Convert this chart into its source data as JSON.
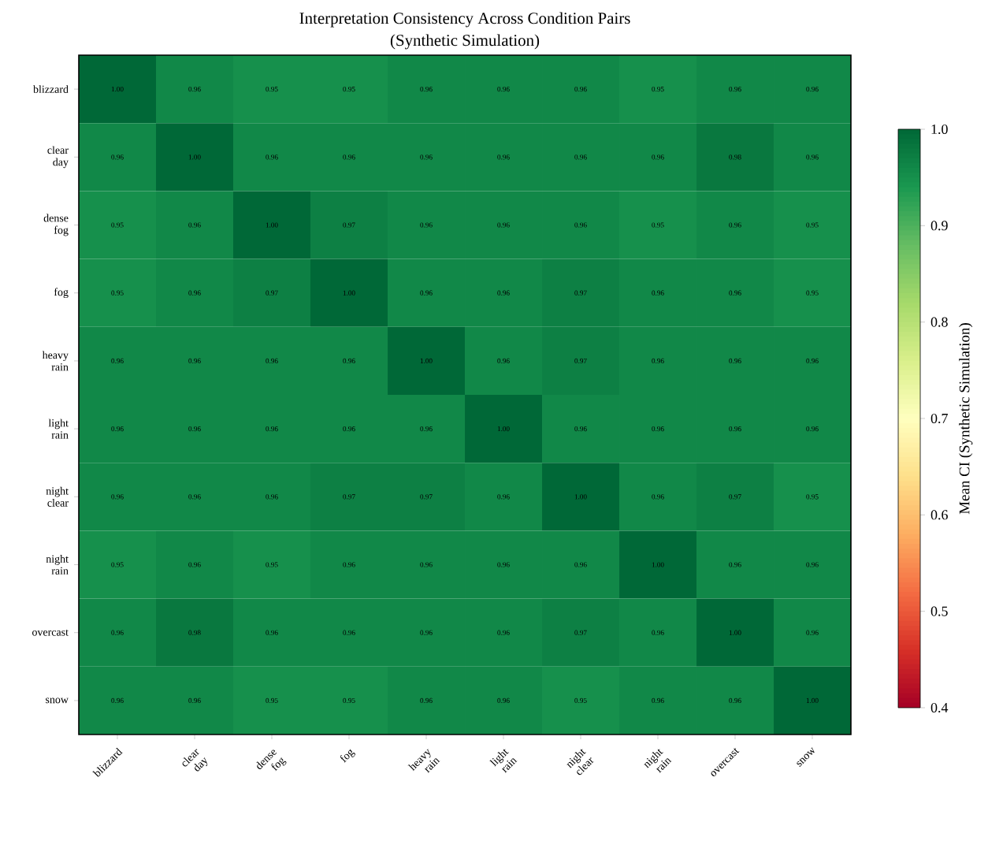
{
  "chart_data": {
    "type": "heatmap",
    "title": "Interpretation Consistency Across Condition Pairs",
    "subtitle": "(Synthetic Simulation)",
    "categories": [
      "blizzard",
      "clear day",
      "dense fog",
      "fog",
      "heavy rain",
      "light rain",
      "night clear",
      "night rain",
      "overcast",
      "snow"
    ],
    "y_categories": [
      "blizzard",
      "clear day",
      "dense fog",
      "fog",
      "heavy rain",
      "light rain",
      "night clear",
      "night rain",
      "overcast",
      "snow"
    ],
    "cells": [
      [
        1.0,
        0.96,
        0.95,
        0.95,
        0.96,
        0.96,
        0.96,
        0.95,
        0.96,
        0.96
      ],
      [
        0.96,
        1.0,
        0.96,
        0.96,
        0.96,
        0.96,
        0.96,
        0.96,
        0.98,
        0.96
      ],
      [
        0.95,
        0.96,
        1.0,
        0.97,
        0.96,
        0.96,
        0.96,
        0.95,
        0.96,
        0.95
      ],
      [
        0.95,
        0.96,
        0.97,
        1.0,
        0.96,
        0.96,
        0.97,
        0.96,
        0.96,
        0.95
      ],
      [
        0.96,
        0.96,
        0.96,
        0.96,
        1.0,
        0.96,
        0.97,
        0.96,
        0.96,
        0.96
      ],
      [
        0.96,
        0.96,
        0.96,
        0.96,
        0.96,
        1.0,
        0.96,
        0.96,
        0.96,
        0.96
      ],
      [
        0.96,
        0.96,
        0.96,
        0.97,
        0.97,
        0.96,
        1.0,
        0.96,
        0.97,
        0.95
      ],
      [
        0.95,
        0.96,
        0.95,
        0.96,
        0.96,
        0.96,
        0.96,
        1.0,
        0.96,
        0.96
      ],
      [
        0.96,
        0.98,
        0.96,
        0.96,
        0.96,
        0.96,
        0.97,
        0.96,
        1.0,
        0.96
      ],
      [
        0.96,
        0.96,
        0.95,
        0.95,
        0.96,
        0.96,
        0.95,
        0.96,
        0.96,
        1.0
      ]
    ],
    "cell_labels": [
      [
        "1.00",
        "0.96",
        "0.95",
        "0.95",
        "0.96",
        "0.96",
        "0.96",
        "0.95",
        "0.96",
        "0.96"
      ],
      [
        "0.96",
        "1.00",
        "0.96",
        "0.96",
        "0.96",
        "0.96",
        "0.96",
        "0.96",
        "0.98",
        "0.96"
      ],
      [
        "0.95",
        "0.96",
        "1.00",
        "0.97",
        "0.96",
        "0.96",
        "0.96",
        "0.95",
        "0.96",
        "0.95"
      ],
      [
        "0.95",
        "0.96",
        "0.97",
        "1.00",
        "0.96",
        "0.96",
        "0.97",
        "0.96",
        "0.96",
        "0.95"
      ],
      [
        "0.96",
        "0.96",
        "0.96",
        "0.96",
        "1.00",
        "0.96",
        "0.97",
        "0.96",
        "0.96",
        "0.96"
      ],
      [
        "0.96",
        "0.96",
        "0.96",
        "0.96",
        "0.96",
        "1.00",
        "0.96",
        "0.96",
        "0.96",
        "0.96"
      ],
      [
        "0.96",
        "0.96",
        "0.96",
        "0.97",
        "0.97",
        "0.96",
        "1.00",
        "0.96",
        "0.97",
        "0.95"
      ],
      [
        "0.95",
        "0.96",
        "0.95",
        "0.96",
        "0.96",
        "0.96",
        "0.96",
        "1.00",
        "0.96",
        "0.96"
      ],
      [
        "0.96",
        "0.98",
        "0.96",
        "0.96",
        "0.96",
        "0.96",
        "0.97",
        "0.96",
        "1.00",
        "0.96"
      ],
      [
        "0.96",
        "0.96",
        "0.95",
        "0.95",
        "0.96",
        "0.96",
        "0.95",
        "0.96",
        "0.96",
        "1.00"
      ]
    ],
    "clim": [
      0.4,
      1.0
    ],
    "cticks": [
      0.4,
      0.5,
      0.6,
      0.7,
      0.8,
      0.9,
      {
        "value": 1.0,
        "label": "1.0"
      }
    ],
    "clabel": "Mean CI (Synthetic Simulation)"
  }
}
